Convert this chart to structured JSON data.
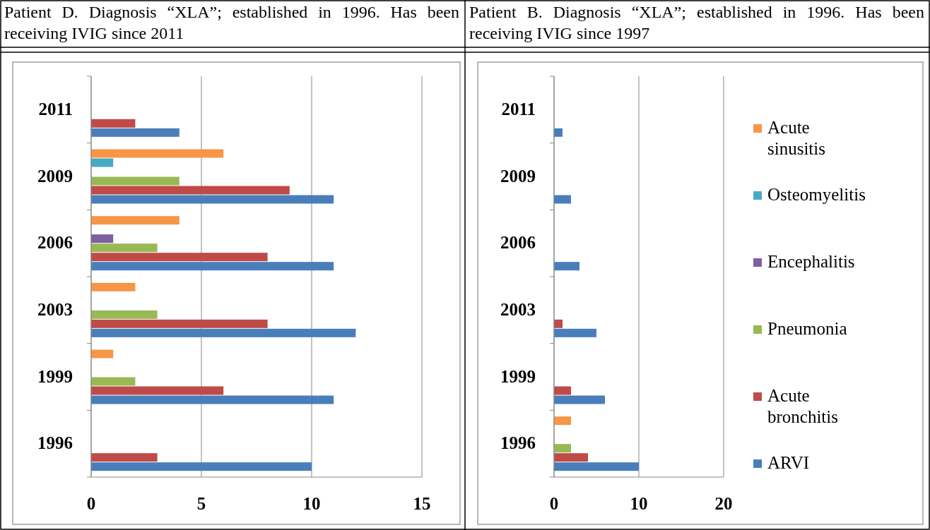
{
  "chart_data": [
    {
      "type": "bar",
      "orientation": "horizontal",
      "title": "Patient D. Diagnosis “XLA”; established in 1996. Has been receiving IVIG since 2011",
      "categories": [
        "2011",
        "2009",
        "2006",
        "2003",
        "1999",
        "1996"
      ],
      "xlim": [
        0,
        15
      ],
      "xticks": [
        0,
        5,
        10,
        15
      ],
      "grid": "x",
      "series": [
        {
          "color": "#4a7ebb",
          "values": [
            4,
            11,
            11,
            12,
            11,
            10
          ]
        },
        {
          "color": "#be4b48",
          "values": [
            2,
            9,
            8,
            8,
            6,
            3
          ]
        },
        {
          "color": "#98b954",
          "values": [
            null,
            4,
            3,
            3,
            2,
            null
          ]
        },
        {
          "color": "#7d60a0",
          "values": [
            null,
            null,
            1,
            null,
            null,
            null
          ]
        },
        {
          "color": "#46aac5",
          "values": [
            null,
            1,
            null,
            null,
            null,
            null
          ]
        },
        {
          "color": "#f79646",
          "values": [
            null,
            6,
            4,
            2,
            1,
            null
          ]
        }
      ]
    },
    {
      "type": "bar",
      "orientation": "horizontal",
      "title": "Patient B. Diagnosis “XLA”; established in 1996. Has been receiving IVIG since 1997",
      "categories": [
        "2011",
        "2009",
        "2006",
        "2003",
        "1999",
        "1996"
      ],
      "xlim": [
        0,
        20
      ],
      "xticks": [
        0,
        10,
        20
      ],
      "grid": "x",
      "legend": "right",
      "series": [
        {
          "name": "ARVI",
          "color": "#4a7ebb",
          "values": [
            1,
            2,
            3,
            5,
            6,
            10
          ]
        },
        {
          "name": "Acute bronchitis",
          "color": "#be4b48",
          "values": [
            null,
            null,
            null,
            1,
            2,
            4
          ]
        },
        {
          "name": "Pneumonia",
          "color": "#98b954",
          "values": [
            null,
            null,
            null,
            null,
            null,
            2
          ]
        },
        {
          "name": "Encephalitis",
          "color": "#7d60a0",
          "values": [
            null,
            null,
            null,
            null,
            null,
            null
          ]
        },
        {
          "name": "Osteomyelitis",
          "color": "#46aac5",
          "values": [
            null,
            null,
            null,
            null,
            null,
            null
          ]
        },
        {
          "name": "Acute sinusitis",
          "color": "#f79646",
          "values": [
            null,
            null,
            null,
            null,
            null,
            2
          ]
        }
      ]
    }
  ]
}
